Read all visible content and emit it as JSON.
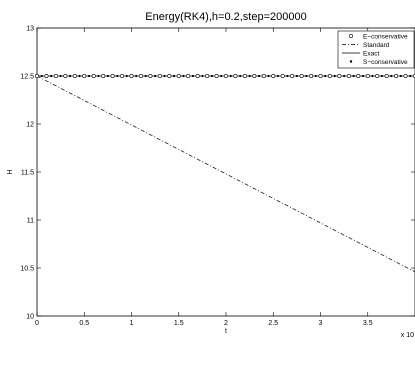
{
  "chart_data": {
    "type": "line",
    "title": "Energy(RK4),h=0.2,step=200000",
    "xlabel": "t",
    "ylabel": "H",
    "x_multiplier_label": "x 10",
    "xlim": [
      0,
      40000
    ],
    "ylim": [
      10,
      13
    ],
    "x_ticks": [
      0,
      5000,
      10000,
      15000,
      20000,
      25000,
      30000,
      35000
    ],
    "x_tick_labels": [
      "0",
      "0.5",
      "1",
      "1.5",
      "2",
      "2.5",
      "3",
      "3.5"
    ],
    "y_ticks": [
      10,
      10.5,
      11,
      11.5,
      12,
      12.5,
      13
    ],
    "y_tick_labels": [
      "10",
      "10.5",
      "11",
      "11.5",
      "12",
      "12.5",
      "13"
    ],
    "legend_position": "top-right",
    "series": [
      {
        "name": "E−conservative",
        "style": "open-circle",
        "x": [
          0,
          40000
        ],
        "y": [
          12.5,
          12.5
        ]
      },
      {
        "name": "Standard",
        "style": "dash-dot",
        "x": [
          0,
          40000
        ],
        "y": [
          12.5,
          10.46
        ]
      },
      {
        "name": "Exact",
        "style": "solid",
        "x": [
          0,
          40000
        ],
        "y": [
          12.5,
          12.5
        ]
      },
      {
        "name": "S−conservative",
        "style": "filled-dot",
        "x": [
          0,
          40000
        ],
        "y": [
          12.5,
          12.5
        ]
      }
    ]
  }
}
